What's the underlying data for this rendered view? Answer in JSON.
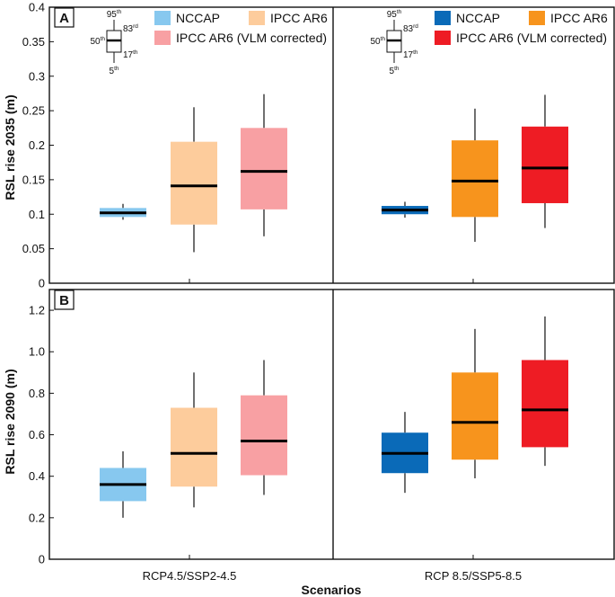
{
  "chart_data": {
    "type": "box",
    "xlabel": "Scenarios",
    "scenarios": [
      "RCP4.5/SSP2-4.5",
      "RCP 8.5/SSP5-8.5"
    ],
    "legend_left": [
      {
        "label": "NCCAP",
        "color": "#87c8ef"
      },
      {
        "label": "IPCC AR6",
        "color": "#fdcc9c"
      },
      {
        "label": "IPCC AR6 (VLM corrected)",
        "color": "#f8a0a3"
      }
    ],
    "legend_right": [
      {
        "label": "NCCAP",
        "color": "#0a6ab8"
      },
      {
        "label": "IPCC AR6",
        "color": "#f7941d"
      },
      {
        "label": "IPCC AR6 (VLM corrected)",
        "color": "#ee1c24"
      }
    ],
    "percentile_key": {
      "p95": "95",
      "p83": "83",
      "p50": "50",
      "p17": "17",
      "p5": "5",
      "sup_th": "th",
      "sup_rd": "rd"
    },
    "panels": [
      {
        "letter": "A",
        "ylabel": "RSL rise 2035 (m)",
        "ylim": [
          0,
          0.4
        ],
        "yticks": [
          "0",
          "0.05",
          "0.1",
          "0.15",
          "0.2",
          "0.25",
          "0.3",
          "0.35",
          "0.4"
        ],
        "yticks_values": [
          0,
          0.05,
          0.1,
          0.15,
          0.2,
          0.25,
          0.3,
          0.35,
          0.4
        ],
        "groups": [
          {
            "scenario": "RCP4.5/SSP2-4.5",
            "boxes": [
              {
                "series": "NCCAP",
                "p5": 0.092,
                "p17": 0.096,
                "p50": 0.102,
                "p83": 0.109,
                "p95": 0.115
              },
              {
                "series": "IPCC AR6",
                "p5": 0.045,
                "p17": 0.085,
                "p50": 0.141,
                "p83": 0.205,
                "p95": 0.255
              },
              {
                "series": "IPCC AR6 (VLM corrected)",
                "p5": 0.068,
                "p17": 0.107,
                "p50": 0.162,
                "p83": 0.225,
                "p95": 0.274
              }
            ]
          },
          {
            "scenario": "RCP 8.5/SSP5-8.5",
            "boxes": [
              {
                "series": "NCCAP",
                "p5": 0.095,
                "p17": 0.1,
                "p50": 0.106,
                "p83": 0.112,
                "p95": 0.118
              },
              {
                "series": "IPCC AR6",
                "p5": 0.06,
                "p17": 0.096,
                "p50": 0.148,
                "p83": 0.207,
                "p95": 0.253
              },
              {
                "series": "IPCC AR6 (VLM corrected)",
                "p5": 0.08,
                "p17": 0.116,
                "p50": 0.167,
                "p83": 0.227,
                "p95": 0.273
              }
            ]
          }
        ]
      },
      {
        "letter": "B",
        "ylabel": "RSL rise 2090 (m)",
        "ylim": [
          0,
          1.3
        ],
        "yticks": [
          "0",
          "0.2",
          "0.4",
          "0.6",
          "0.8",
          "1.0",
          "1.2"
        ],
        "yticks_values": [
          0,
          0.2,
          0.4,
          0.6,
          0.8,
          1.0,
          1.2
        ],
        "groups": [
          {
            "scenario": "RCP4.5/SSP2-4.5",
            "boxes": [
              {
                "series": "NCCAP",
                "p5": 0.2,
                "p17": 0.28,
                "p50": 0.36,
                "p83": 0.44,
                "p95": 0.52
              },
              {
                "series": "IPCC AR6",
                "p5": 0.25,
                "p17": 0.35,
                "p50": 0.51,
                "p83": 0.73,
                "p95": 0.9
              },
              {
                "series": "IPCC AR6 (VLM corrected)",
                "p5": 0.31,
                "p17": 0.405,
                "p50": 0.57,
                "p83": 0.79,
                "p95": 0.96
              }
            ]
          },
          {
            "scenario": "RCP 8.5/SSP5-8.5",
            "boxes": [
              {
                "series": "NCCAP",
                "p5": 0.32,
                "p17": 0.415,
                "p50": 0.51,
                "p83": 0.61,
                "p95": 0.71
              },
              {
                "series": "IPCC AR6",
                "p5": 0.39,
                "p17": 0.48,
                "p50": 0.66,
                "p83": 0.9,
                "p95": 1.11
              },
              {
                "series": "IPCC AR6 (VLM corrected)",
                "p5": 0.45,
                "p17": 0.54,
                "p50": 0.72,
                "p83": 0.96,
                "p95": 1.17
              }
            ]
          }
        ]
      }
    ]
  }
}
